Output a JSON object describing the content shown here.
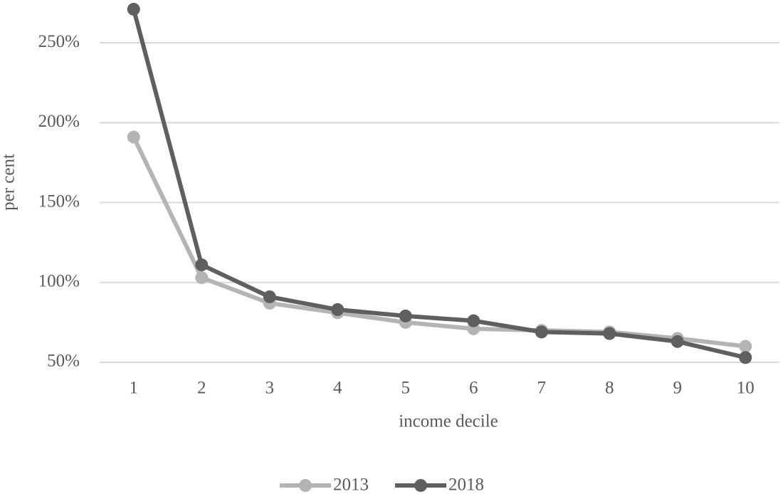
{
  "chart_data": {
    "type": "line",
    "x_label": "income decile",
    "y_label": "per cent",
    "categories": [
      "1",
      "2",
      "3",
      "4",
      "5",
      "6",
      "7",
      "8",
      "9",
      "10"
    ],
    "series": [
      {
        "name": "2013",
        "color": "#b4b4b4",
        "values": [
          191,
          103,
          87,
          81,
          75,
          71,
          70,
          69,
          65,
          60
        ]
      },
      {
        "name": "2018",
        "color": "#5f5f5f",
        "values": [
          271,
          111,
          91,
          83,
          79,
          76,
          69,
          68,
          63,
          53
        ]
      }
    ],
    "ylim": [
      50,
      275
    ],
    "yticks": [
      {
        "value": 50,
        "label": "50%"
      },
      {
        "value": 100,
        "label": "100%"
      },
      {
        "value": 150,
        "label": "150%"
      },
      {
        "value": 200,
        "label": "200%"
      },
      {
        "value": 250,
        "label": "250%"
      }
    ],
    "grid": true,
    "legend": "bottom"
  }
}
